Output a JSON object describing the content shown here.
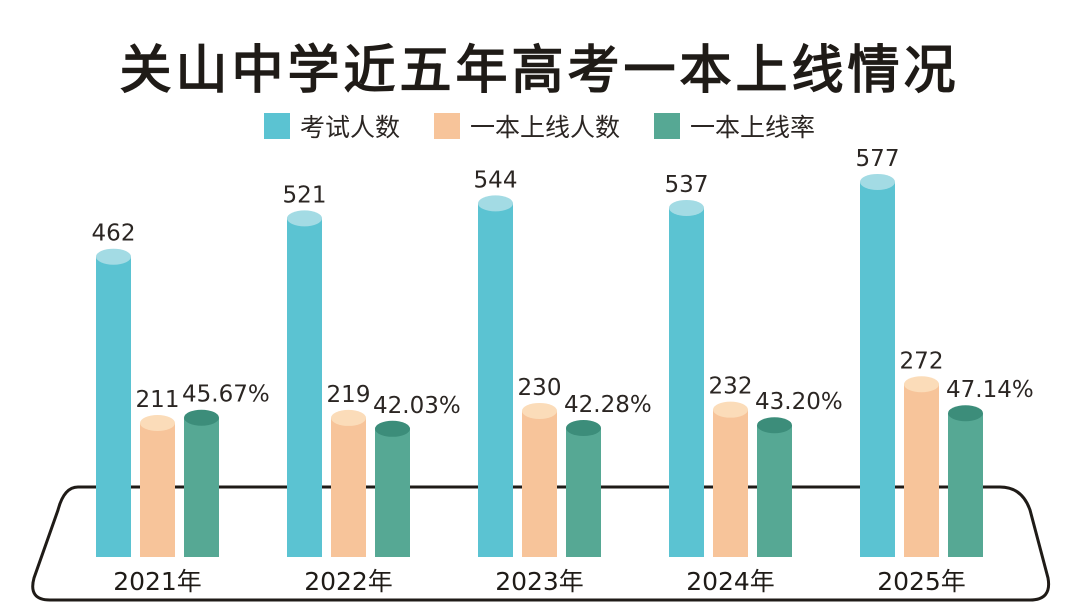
{
  "chart_data": {
    "type": "bar",
    "title": "关山中学近五年高考一本上线情况",
    "categories": [
      "2021年",
      "2022年",
      "2023年",
      "2024年",
      "2025年"
    ],
    "series": [
      {
        "name": "考试人数",
        "color": "#5bc3d2",
        "values": [
          462,
          521,
          544,
          537,
          577
        ],
        "labels": [
          "462",
          "521",
          "544",
          "537",
          "577"
        ]
      },
      {
        "name": "一本上线人数",
        "color": "#f7c49a",
        "values": [
          211,
          219,
          230,
          232,
          272
        ],
        "labels": [
          "211",
          "219",
          "230",
          "232",
          "272"
        ]
      },
      {
        "name": "一本上线率",
        "color": "#56a894",
        "values": [
          45.67,
          42.03,
          42.28,
          43.2,
          47.14
        ],
        "labels": [
          "45.67%",
          "42.03%",
          "42.28%",
          "43.20%",
          "47.14%"
        ]
      }
    ],
    "legend_position": "top-center",
    "grid": false
  }
}
